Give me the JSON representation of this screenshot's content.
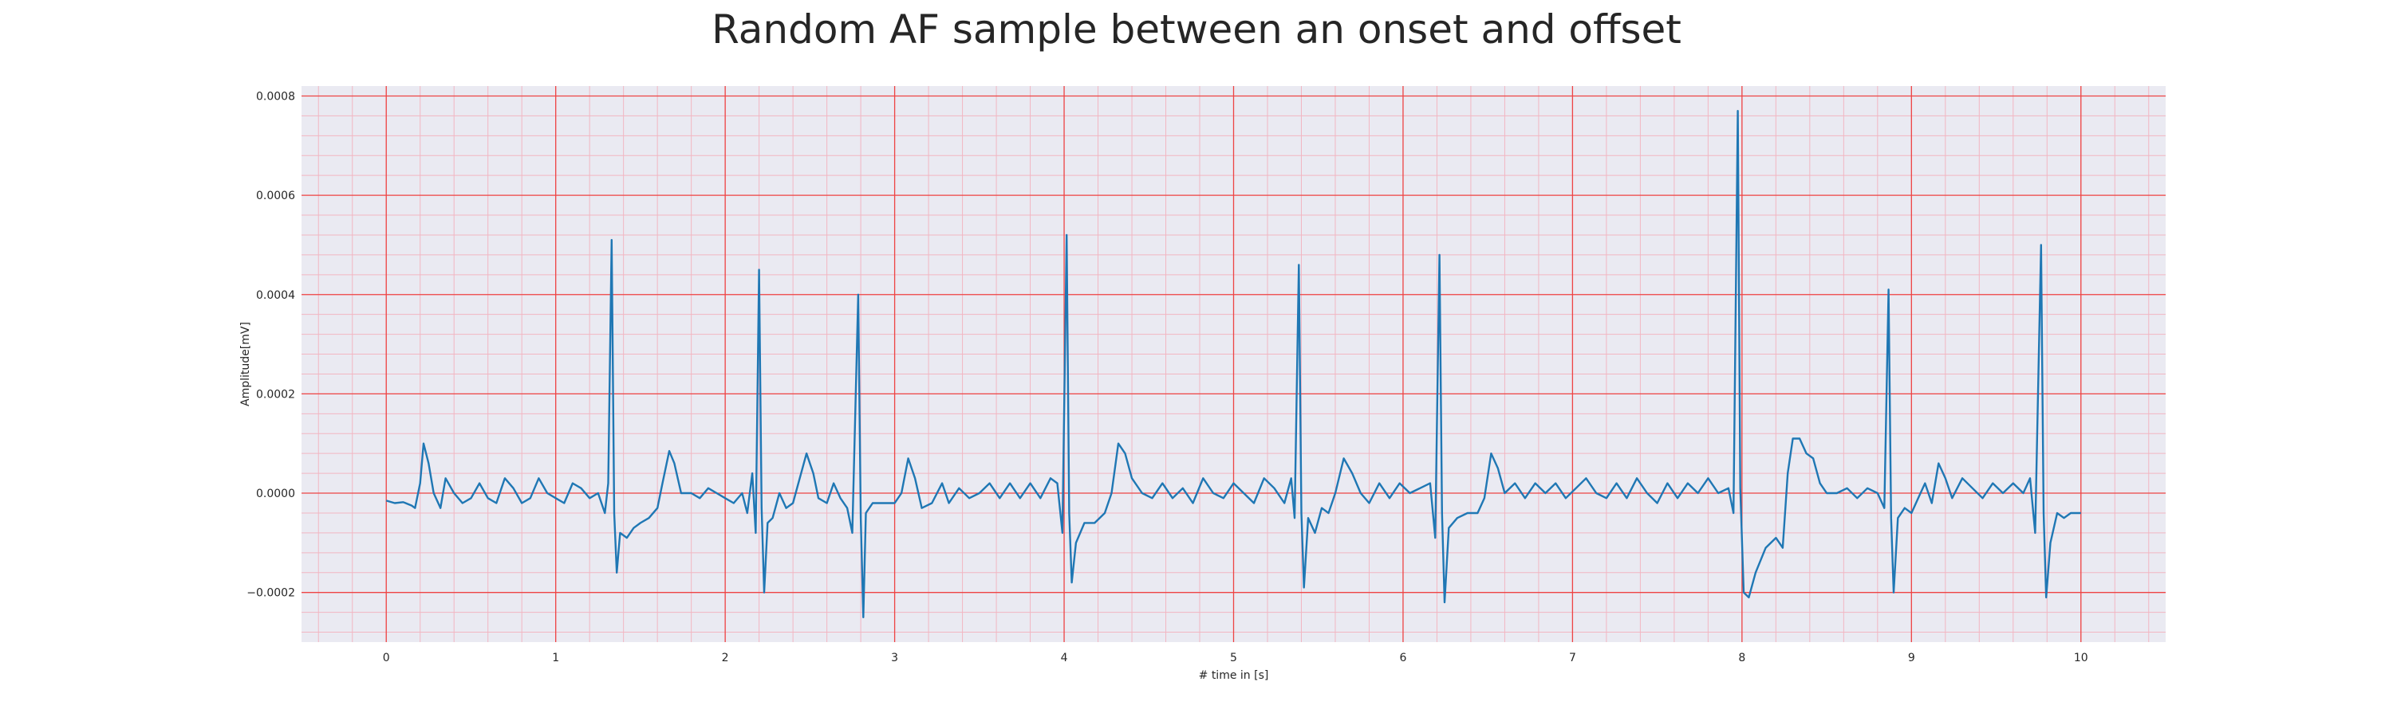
{
  "chart_data": {
    "type": "line",
    "title": "Random AF sample between an onset and offset",
    "xlabel": "# time in [s]",
    "ylabel": "Amplitude[mV]",
    "xlim": [
      -0.5,
      10.5
    ],
    "ylim": [
      -0.0003,
      0.00082
    ],
    "xticks": [
      0,
      1,
      2,
      3,
      4,
      5,
      6,
      7,
      8,
      9,
      10
    ],
    "xtick_labels": [
      "0",
      "1",
      "2",
      "3",
      "4",
      "5",
      "6",
      "7",
      "8",
      "9",
      "10"
    ],
    "yticks": [
      -0.0002,
      0,
      0.0002,
      0.0004,
      0.0006,
      0.0008
    ],
    "ytick_labels": [
      "−0.0002",
      "0.0000",
      "0.0002",
      "0.0004",
      "0.0006",
      "0.0008"
    ],
    "grid": true,
    "colors": {
      "line": "#1f77b4",
      "background": "#eaeaf2",
      "major_grid": "#ee4444",
      "minor_grid": "#f2b6c2"
    },
    "series": [
      {
        "points": [
          [
            0.0,
            -1.5e-05
          ],
          [
            0.05,
            -2e-05
          ],
          [
            0.1,
            -1.8e-05
          ],
          [
            0.15,
            -2.5e-05
          ],
          [
            0.17,
            -3e-05
          ],
          [
            0.2,
            2e-05
          ],
          [
            0.22,
            0.0001
          ],
          [
            0.25,
            6e-05
          ],
          [
            0.28,
            0.0
          ],
          [
            0.32,
            -3e-05
          ],
          [
            0.35,
            3e-05
          ],
          [
            0.4,
            0.0
          ],
          [
            0.45,
            -2e-05
          ],
          [
            0.5,
            -1e-05
          ],
          [
            0.55,
            2e-05
          ],
          [
            0.6,
            -1e-05
          ],
          [
            0.65,
            -2e-05
          ],
          [
            0.7,
            3e-05
          ],
          [
            0.75,
            1e-05
          ],
          [
            0.8,
            -2e-05
          ],
          [
            0.85,
            -1e-05
          ],
          [
            0.9,
            3e-05
          ],
          [
            0.95,
            0.0
          ],
          [
            1.0,
            -1e-05
          ],
          [
            1.05,
            -2e-05
          ],
          [
            1.1,
            2e-05
          ],
          [
            1.15,
            1e-05
          ],
          [
            1.2,
            -1e-05
          ],
          [
            1.25,
            0.0
          ],
          [
            1.29,
            -4e-05
          ],
          [
            1.31,
            2e-05
          ],
          [
            1.33,
            0.00051
          ],
          [
            1.345,
            -4e-05
          ],
          [
            1.36,
            -0.00016
          ],
          [
            1.38,
            -8e-05
          ],
          [
            1.42,
            -9e-05
          ],
          [
            1.46,
            -7e-05
          ],
          [
            1.5,
            -6e-05
          ],
          [
            1.55,
            -5e-05
          ],
          [
            1.6,
            -3e-05
          ],
          [
            1.63,
            2e-05
          ],
          [
            1.67,
            8.5e-05
          ],
          [
            1.7,
            6e-05
          ],
          [
            1.74,
            0.0
          ],
          [
            1.8,
            0.0
          ],
          [
            1.85,
            -1e-05
          ],
          [
            1.9,
            1e-05
          ],
          [
            1.95,
            0.0
          ],
          [
            2.0,
            -1e-05
          ],
          [
            2.05,
            -2e-05
          ],
          [
            2.1,
            0.0
          ],
          [
            2.13,
            -4e-05
          ],
          [
            2.16,
            4e-05
          ],
          [
            2.18,
            -8e-05
          ],
          [
            2.2,
            0.00045
          ],
          [
            2.215,
            -3e-05
          ],
          [
            2.23,
            -0.0002
          ],
          [
            2.25,
            -6e-05
          ],
          [
            2.28,
            -5e-05
          ],
          [
            2.32,
            0.0
          ],
          [
            2.36,
            -3e-05
          ],
          [
            2.4,
            -2e-05
          ],
          [
            2.44,
            3e-05
          ],
          [
            2.48,
            8e-05
          ],
          [
            2.52,
            4e-05
          ],
          [
            2.55,
            -1e-05
          ],
          [
            2.6,
            -2e-05
          ],
          [
            2.64,
            2e-05
          ],
          [
            2.68,
            -1e-05
          ],
          [
            2.72,
            -3e-05
          ],
          [
            2.75,
            -8e-05
          ],
          [
            2.785,
            0.0004
          ],
          [
            2.8,
            -5e-05
          ],
          [
            2.815,
            -0.00025
          ],
          [
            2.83,
            -4e-05
          ],
          [
            2.87,
            -2e-05
          ],
          [
            2.92,
            -2e-05
          ],
          [
            2.97,
            -2e-05
          ],
          [
            3.0,
            -2e-05
          ],
          [
            3.04,
            0.0
          ],
          [
            3.08,
            7e-05
          ],
          [
            3.12,
            3e-05
          ],
          [
            3.16,
            -3e-05
          ],
          [
            3.22,
            -2e-05
          ],
          [
            3.28,
            2e-05
          ],
          [
            3.32,
            -2e-05
          ],
          [
            3.38,
            1e-05
          ],
          [
            3.44,
            -1e-05
          ],
          [
            3.5,
            0.0
          ],
          [
            3.56,
            2e-05
          ],
          [
            3.62,
            -1e-05
          ],
          [
            3.68,
            2e-05
          ],
          [
            3.74,
            -1e-05
          ],
          [
            3.8,
            2e-05
          ],
          [
            3.86,
            -1e-05
          ],
          [
            3.92,
            3e-05
          ],
          [
            3.96,
            2e-05
          ],
          [
            3.99,
            -8e-05
          ],
          [
            4.015,
            0.00052
          ],
          [
            4.03,
            -4e-05
          ],
          [
            4.045,
            -0.00018
          ],
          [
            4.07,
            -0.0001
          ],
          [
            4.12,
            -6e-05
          ],
          [
            4.18,
            -6e-05
          ],
          [
            4.24,
            -4e-05
          ],
          [
            4.28,
            0.0
          ],
          [
            4.32,
            0.0001
          ],
          [
            4.36,
            8e-05
          ],
          [
            4.4,
            3e-05
          ],
          [
            4.46,
            0.0
          ],
          [
            4.52,
            -1e-05
          ],
          [
            4.58,
            2e-05
          ],
          [
            4.64,
            -1e-05
          ],
          [
            4.7,
            1e-05
          ],
          [
            4.76,
            -2e-05
          ],
          [
            4.82,
            3e-05
          ],
          [
            4.88,
            0.0
          ],
          [
            4.94,
            -1e-05
          ],
          [
            5.0,
            2e-05
          ],
          [
            5.06,
            0.0
          ],
          [
            5.12,
            -2e-05
          ],
          [
            5.18,
            3e-05
          ],
          [
            5.24,
            1e-05
          ],
          [
            5.3,
            -2e-05
          ],
          [
            5.34,
            3e-05
          ],
          [
            5.36,
            -5e-05
          ],
          [
            5.385,
            0.00046
          ],
          [
            5.4,
            -4e-05
          ],
          [
            5.415,
            -0.00019
          ],
          [
            5.44,
            -5e-05
          ],
          [
            5.48,
            -8e-05
          ],
          [
            5.52,
            -3e-05
          ],
          [
            5.56,
            -4e-05
          ],
          [
            5.6,
            0.0
          ],
          [
            5.65,
            7e-05
          ],
          [
            5.7,
            4e-05
          ],
          [
            5.75,
            0.0
          ],
          [
            5.8,
            -2e-05
          ],
          [
            5.86,
            2e-05
          ],
          [
            5.92,
            -1e-05
          ],
          [
            5.98,
            2e-05
          ],
          [
            6.04,
            0.0
          ],
          [
            6.1,
            1e-05
          ],
          [
            6.16,
            2e-05
          ],
          [
            6.19,
            -9e-05
          ],
          [
            6.215,
            0.00048
          ],
          [
            6.23,
            -4e-05
          ],
          [
            6.245,
            -0.00022
          ],
          [
            6.27,
            -7e-05
          ],
          [
            6.32,
            -5e-05
          ],
          [
            6.38,
            -4e-05
          ],
          [
            6.44,
            -4e-05
          ],
          [
            6.48,
            -1e-05
          ],
          [
            6.52,
            8e-05
          ],
          [
            6.56,
            5e-05
          ],
          [
            6.6,
            0.0
          ],
          [
            6.66,
            2e-05
          ],
          [
            6.72,
            -1e-05
          ],
          [
            6.78,
            2e-05
          ],
          [
            6.84,
            0.0
          ],
          [
            6.9,
            2e-05
          ],
          [
            6.96,
            -1e-05
          ],
          [
            7.02,
            1e-05
          ],
          [
            7.08,
            3e-05
          ],
          [
            7.14,
            0.0
          ],
          [
            7.2,
            -1e-05
          ],
          [
            7.26,
            2e-05
          ],
          [
            7.32,
            -1e-05
          ],
          [
            7.38,
            3e-05
          ],
          [
            7.44,
            0.0
          ],
          [
            7.5,
            -2e-05
          ],
          [
            7.56,
            2e-05
          ],
          [
            7.62,
            -1e-05
          ],
          [
            7.68,
            2e-05
          ],
          [
            7.74,
            0.0
          ],
          [
            7.8,
            3e-05
          ],
          [
            7.86,
            0.0
          ],
          [
            7.92,
            1e-05
          ],
          [
            7.95,
            -4e-05
          ],
          [
            7.975,
            0.00077
          ],
          [
            7.99,
            1e-05
          ],
          [
            8.01,
            -0.0002
          ],
          [
            8.04,
            -0.00021
          ],
          [
            8.08,
            -0.00016
          ],
          [
            8.14,
            -0.00011
          ],
          [
            8.2,
            -9e-05
          ],
          [
            8.24,
            -0.00011
          ],
          [
            8.27,
            4e-05
          ],
          [
            8.3,
            0.00011
          ],
          [
            8.34,
            0.00011
          ],
          [
            8.38,
            8e-05
          ],
          [
            8.42,
            7e-05
          ],
          [
            8.46,
            2e-05
          ],
          [
            8.5,
            0.0
          ],
          [
            8.56,
            0.0
          ],
          [
            8.62,
            1e-05
          ],
          [
            8.68,
            -1e-05
          ],
          [
            8.74,
            1e-05
          ],
          [
            8.8,
            0.0
          ],
          [
            8.84,
            -3e-05
          ],
          [
            8.865,
            0.00041
          ],
          [
            8.88,
            -5e-05
          ],
          [
            8.895,
            -0.0002
          ],
          [
            8.92,
            -5e-05
          ],
          [
            8.96,
            -3e-05
          ],
          [
            9.0,
            -4e-05
          ],
          [
            9.04,
            -1e-05
          ],
          [
            9.08,
            2e-05
          ],
          [
            9.12,
            -2e-05
          ],
          [
            9.16,
            6e-05
          ],
          [
            9.2,
            3e-05
          ],
          [
            9.24,
            -1e-05
          ],
          [
            9.3,
            3e-05
          ],
          [
            9.36,
            1e-05
          ],
          [
            9.42,
            -1e-05
          ],
          [
            9.48,
            2e-05
          ],
          [
            9.54,
            0.0
          ],
          [
            9.6,
            2e-05
          ],
          [
            9.66,
            0.0
          ],
          [
            9.7,
            3e-05
          ],
          [
            9.73,
            -8e-05
          ],
          [
            9.765,
            0.0005
          ],
          [
            9.78,
            -4e-05
          ],
          [
            9.795,
            -0.00021
          ],
          [
            9.82,
            -0.0001
          ],
          [
            9.86,
            -4e-05
          ],
          [
            9.9,
            -5e-05
          ],
          [
            9.94,
            -4e-05
          ],
          [
            10.0,
            -4e-05
          ]
        ]
      }
    ]
  }
}
